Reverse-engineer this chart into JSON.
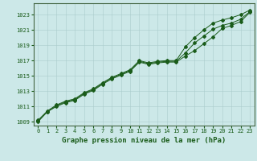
{
  "title": "Graphe pression niveau de la mer (hPa)",
  "bg_color": "#cce8e8",
  "line_color": "#1a5c1a",
  "ylim": [
    1008.5,
    1024.5
  ],
  "xlim": [
    -0.5,
    23.5
  ],
  "yticks": [
    1009,
    1011,
    1013,
    1015,
    1017,
    1019,
    1021,
    1023
  ],
  "xticks": [
    0,
    1,
    2,
    3,
    4,
    5,
    6,
    7,
    8,
    9,
    10,
    11,
    12,
    13,
    14,
    15,
    16,
    17,
    18,
    19,
    20,
    21,
    22,
    23
  ],
  "series1": {
    "x": [
      0,
      1,
      2,
      3,
      4,
      5,
      6,
      7,
      8,
      9,
      10,
      11,
      12,
      13,
      14,
      15,
      16,
      17,
      18,
      19,
      20,
      21,
      22,
      23
    ],
    "y": [
      1009.0,
      1010.3,
      1011.0,
      1011.5,
      1011.8,
      1012.6,
      1013.1,
      1013.9,
      1014.6,
      1015.1,
      1015.6,
      1016.8,
      1016.5,
      1016.7,
      1016.8,
      1016.8,
      1017.6,
      1018.3,
      1019.2,
      1020.1,
      1021.2,
      1021.6,
      1022.1,
      1023.3
    ]
  },
  "series2": {
    "x": [
      0,
      1,
      2,
      3,
      4,
      5,
      6,
      7,
      8,
      9,
      10,
      11,
      12,
      13,
      14,
      15,
      16,
      17,
      18,
      19,
      20,
      21,
      22,
      23
    ],
    "y": [
      1009.1,
      1010.3,
      1011.1,
      1011.6,
      1011.9,
      1012.7,
      1013.2,
      1014.0,
      1014.7,
      1015.2,
      1015.7,
      1016.9,
      1016.6,
      1016.8,
      1016.9,
      1016.9,
      1018.0,
      1019.3,
      1020.2,
      1021.1,
      1021.6,
      1021.9,
      1022.4,
      1023.4
    ]
  },
  "series3": {
    "x": [
      0,
      1,
      2,
      3,
      4,
      5,
      6,
      7,
      8,
      9,
      10,
      11,
      12,
      13,
      14,
      15,
      16,
      17,
      18,
      19,
      20,
      21,
      22,
      23
    ],
    "y": [
      1009.2,
      1010.4,
      1011.2,
      1011.7,
      1012.0,
      1012.8,
      1013.3,
      1014.1,
      1014.8,
      1015.3,
      1015.8,
      1017.0,
      1016.7,
      1016.9,
      1017.0,
      1017.0,
      1018.8,
      1020.0,
      1021.0,
      1021.9,
      1022.3,
      1022.6,
      1023.0,
      1023.6
    ]
  }
}
